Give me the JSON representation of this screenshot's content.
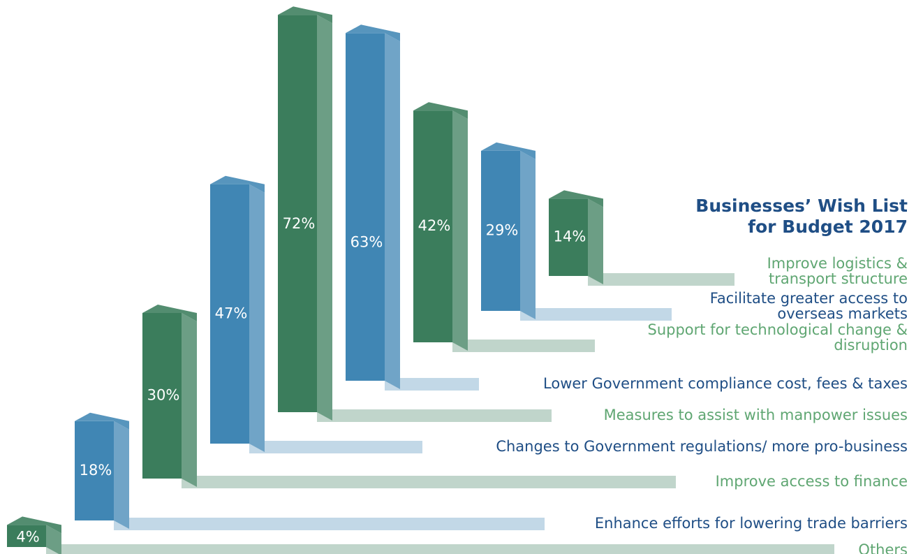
{
  "chart_data": {
    "type": "bar3d",
    "title": [
      "Businesses’ Wish List",
      "for Budget 2017"
    ],
    "title_color": "#1f4e85",
    "categories": [
      [
        "Others"
      ],
      [
        "Enhance efforts for lowering trade barriers"
      ],
      [
        "Improve access to finance"
      ],
      [
        "Changes to Government regulations/ more pro-business"
      ],
      [
        "Measures to assist with manpower issues"
      ],
      [
        "Lower Government compliance cost, fees & taxes"
      ],
      [
        "Support for technological change &",
        "disruption"
      ],
      [
        "Facilitate greater access to",
        "overseas markets"
      ],
      [
        "Improve logistics &",
        "transport structure"
      ]
    ],
    "values": [
      4,
      18,
      30,
      47,
      72,
      63,
      42,
      29,
      14
    ],
    "value_labels": [
      "4%",
      "18%",
      "30%",
      "47%",
      "72%",
      "63%",
      "42%",
      "29%",
      "14%"
    ],
    "colors": [
      "#3b7d5c",
      "#4086b4",
      "#3b7d5c",
      "#4086b4",
      "#3b7d5c",
      "#4086b4",
      "#3b7d5c",
      "#4086b4",
      "#3b7d5c"
    ],
    "label_colors": [
      "#5fa672",
      "#1f4e85",
      "#5fa672",
      "#1f4e85",
      "#5fa672",
      "#1f4e85",
      "#5fa672",
      "#1f4e85",
      "#5fa672"
    ]
  }
}
